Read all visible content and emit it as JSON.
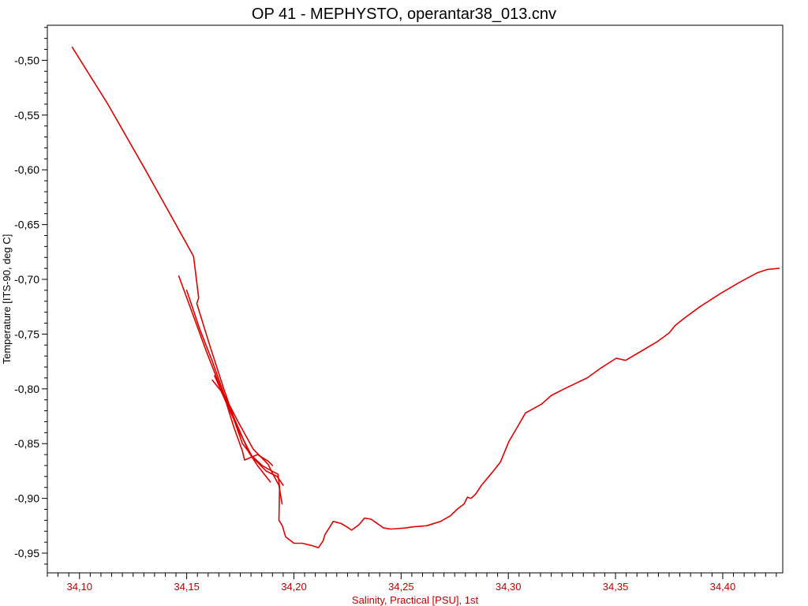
{
  "chart_data": {
    "type": "line",
    "title": "OP 41 - MEPHYSTO, operantar38_013.cnv",
    "xlabel": "Salinity, Practical [PSU], 1st",
    "ylabel": "Temperature [ITS-90, deg C]",
    "xlim": [
      34.085,
      34.428
    ],
    "ylim": [
      -0.968,
      -0.468
    ],
    "x_ticks": [
      {
        "value": 34.1,
        "label": "34,10"
      },
      {
        "value": 34.15,
        "label": "34,15"
      },
      {
        "value": 34.2,
        "label": "34,20"
      },
      {
        "value": 34.25,
        "label": "34,25"
      },
      {
        "value": 34.3,
        "label": "34,30"
      },
      {
        "value": 34.35,
        "label": "34,35"
      },
      {
        "value": 34.4,
        "label": "34,40"
      }
    ],
    "y_ticks": [
      {
        "value": -0.5,
        "label": "-0,50"
      },
      {
        "value": -0.55,
        "label": "-0,55"
      },
      {
        "value": -0.6,
        "label": "-0,60"
      },
      {
        "value": -0.65,
        "label": "-0,65"
      },
      {
        "value": -0.7,
        "label": "-0,70"
      },
      {
        "value": -0.75,
        "label": "-0,75"
      },
      {
        "value": -0.8,
        "label": "-0,80"
      },
      {
        "value": -0.85,
        "label": "-0,85"
      },
      {
        "value": -0.9,
        "label": "-0,90"
      },
      {
        "value": -0.95,
        "label": "-0,95"
      }
    ],
    "grid": false,
    "line_color": "#e00000",
    "xlabel_color": "#c00000",
    "series": [
      {
        "x": [
          34.0966,
          34.1132,
          34.1307,
          34.1444,
          34.1532,
          34.1556,
          34.1547,
          34.1607,
          34.1673,
          34.1737,
          34.1803,
          34.1852,
          34.1877,
          34.1926,
          34.1933,
          34.193,
          34.1946,
          34.1961,
          34.2,
          34.204,
          34.2082,
          34.2114,
          34.2136,
          34.2145,
          34.2168,
          34.2183,
          34.2203,
          34.222,
          34.2247,
          34.2269,
          34.2304,
          34.2329,
          34.236,
          34.2382,
          34.2418,
          34.2452,
          34.2522,
          34.2555,
          34.2619,
          34.2684,
          34.2729,
          34.2761,
          34.2794,
          34.2809,
          34.2826,
          34.2848,
          34.2875,
          34.2922,
          34.2963,
          34.3003,
          34.3045,
          34.308,
          34.3155,
          34.3201,
          34.3261,
          34.3368,
          34.3432,
          34.3503,
          34.3547,
          34.3608,
          34.3694,
          34.375,
          34.3779,
          34.3824,
          34.3894,
          34.3989,
          34.4076,
          34.4161,
          34.4208,
          34.4263
        ],
        "y": [
          -0.488,
          -0.54,
          -0.6,
          -0.648,
          -0.679,
          -0.717,
          -0.722,
          -0.76,
          -0.8,
          -0.836,
          -0.861,
          -0.87,
          -0.873,
          -0.878,
          -0.89,
          -0.92,
          -0.925,
          -0.935,
          -0.941,
          -0.941,
          -0.943,
          -0.945,
          -0.939,
          -0.933,
          -0.926,
          -0.921,
          -0.922,
          -0.923,
          -0.926,
          -0.929,
          -0.924,
          -0.918,
          -0.919,
          -0.922,
          -0.927,
          -0.928,
          -0.927,
          -0.926,
          -0.925,
          -0.921,
          -0.916,
          -0.91,
          -0.905,
          -0.899,
          -0.9,
          -0.896,
          -0.888,
          -0.877,
          -0.867,
          -0.848,
          -0.834,
          -0.822,
          -0.814,
          -0.806,
          -0.8,
          -0.79,
          -0.781,
          -0.772,
          -0.774,
          -0.767,
          -0.757,
          -0.749,
          -0.742,
          -0.735,
          -0.725,
          -0.713,
          -0.703,
          -0.694,
          -0.691,
          -0.69
        ]
      },
      {
        "x": [
          34.1463,
          34.151,
          34.159,
          34.166,
          34.174,
          34.181,
          34.188,
          34.19,
          34.193,
          34.1945
        ],
        "y": [
          -0.697,
          -0.722,
          -0.765,
          -0.8,
          -0.83,
          -0.855,
          -0.869,
          -0.877,
          -0.888,
          -0.905
        ]
      },
      {
        "x": [
          34.15,
          34.156,
          34.162,
          34.168,
          34.174,
          34.179,
          34.183,
          34.187,
          34.189
        ],
        "y": [
          -0.71,
          -0.745,
          -0.775,
          -0.808,
          -0.835,
          -0.858,
          -0.87,
          -0.88,
          -0.885
        ]
      },
      {
        "x": [
          34.162,
          34.166,
          34.172,
          34.176,
          34.181,
          34.187,
          34.1922,
          34.195
        ],
        "y": [
          -0.792,
          -0.802,
          -0.828,
          -0.85,
          -0.863,
          -0.875,
          -0.88,
          -0.888
        ]
      },
      {
        "x": [
          34.163,
          34.168,
          34.172,
          34.176,
          34.177,
          34.183,
          34.188,
          34.19
        ],
        "y": [
          -0.788,
          -0.81,
          -0.835,
          -0.857,
          -0.865,
          -0.86,
          -0.866,
          -0.87
        ]
      }
    ]
  }
}
